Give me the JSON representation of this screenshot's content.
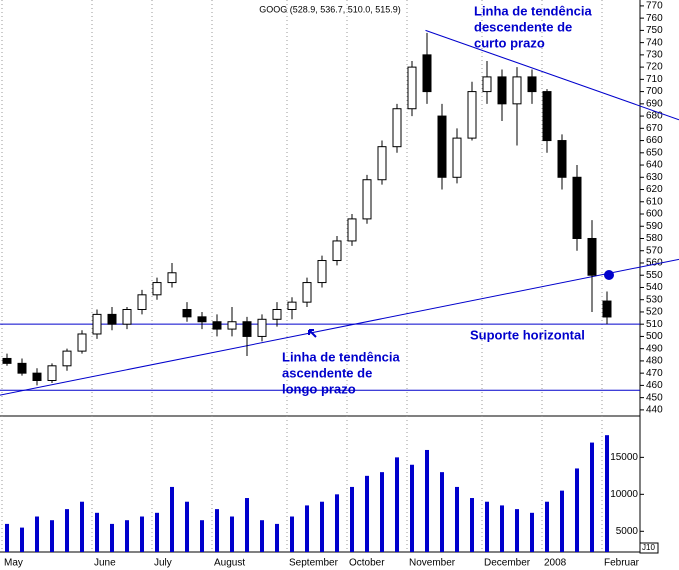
{
  "chart_data": {
    "type": "candlestick",
    "title": "GOOG (528.9, 536.7, 510.0, 515.9)",
    "categories": [
      "May",
      null,
      null,
      null,
      null,
      null,
      "June",
      null,
      null,
      null,
      "July",
      null,
      null,
      null,
      "August",
      null,
      null,
      null,
      null,
      "September",
      null,
      null,
      null,
      "October",
      null,
      null,
      null,
      "November",
      null,
      null,
      null,
      null,
      "December",
      null,
      null,
      null,
      "2008",
      null,
      null,
      null,
      "Februar"
    ],
    "open": [
      482,
      478,
      470,
      464,
      476,
      488,
      502,
      518,
      510,
      522,
      534,
      544,
      522,
      516,
      512,
      506,
      512,
      500,
      514,
      522,
      528,
      544,
      562,
      578,
      596,
      628,
      655,
      686,
      730,
      680,
      630,
      662,
      700,
      712,
      690,
      712,
      700,
      660,
      630,
      580,
      528.9
    ],
    "high": [
      486,
      482,
      474,
      478,
      490,
      505,
      522,
      524,
      524,
      538,
      548,
      560,
      528,
      520,
      518,
      524,
      516,
      518,
      528,
      532,
      548,
      566,
      582,
      600,
      632,
      660,
      690,
      725,
      748,
      690,
      670,
      708,
      725,
      718,
      720,
      718,
      702,
      665,
      640,
      595,
      536.7
    ],
    "low": [
      476,
      468,
      460,
      462,
      472,
      486,
      498,
      505,
      506,
      518,
      530,
      540,
      512,
      506,
      500,
      500,
      484,
      496,
      508,
      514,
      524,
      540,
      558,
      574,
      592,
      624,
      650,
      680,
      690,
      620,
      625,
      660,
      690,
      676,
      656,
      690,
      650,
      620,
      570,
      520,
      510.0
    ],
    "close": [
      478,
      470,
      464,
      476,
      488,
      502,
      518,
      510,
      522,
      534,
      544,
      552,
      516,
      512,
      506,
      512,
      500,
      514,
      522,
      528,
      544,
      562,
      578,
      596,
      628,
      655,
      686,
      720,
      700,
      630,
      662,
      700,
      712,
      690,
      712,
      700,
      660,
      630,
      580,
      550,
      515.9
    ],
    "volume": [
      6000,
      5500,
      7000,
      6500,
      8000,
      9000,
      7500,
      6000,
      6500,
      7000,
      7500,
      11000,
      9000,
      6500,
      8000,
      7000,
      9500,
      6500,
      6000,
      7000,
      8500,
      9000,
      10000,
      11000,
      12500,
      13000,
      15000,
      14000,
      16000,
      13000,
      11000,
      9500,
      9000,
      8500,
      8000,
      7500,
      9000,
      10500,
      13500,
      17000,
      18000
    ],
    "candle_color": "#000000",
    "volume_color": "#0000cc",
    "ylim": [
      435,
      774
    ],
    "yticks": [
      440,
      450,
      460,
      470,
      480,
      490,
      500,
      510,
      520,
      530,
      540,
      550,
      560,
      570,
      580,
      590,
      600,
      610,
      620,
      630,
      640,
      650,
      660,
      670,
      680,
      690,
      700,
      710,
      720,
      730,
      740,
      750,
      760,
      770
    ],
    "volume_ylim": [
      2200,
      18700
    ],
    "volume_yticks": [
      5000,
      10000,
      15000
    ],
    "trendlines": [
      {
        "start": [
          -0.5,
          452
        ],
        "end": [
          44.8,
          563
        ]
      },
      {
        "start": [
          27.9,
          750
        ],
        "end": [
          44.8,
          677
        ]
      }
    ],
    "hlines": [
      510,
      456
    ],
    "line_color": "#0000cc",
    "annotations": [
      [
        "Linha de tendência",
        "descendente de",
        "curto prazo"
      ],
      [
        "Suporte horizontal"
      ],
      [
        "Linha de tendência",
        "ascendente de",
        "longo prazo"
      ]
    ],
    "corner_label": "J10"
  }
}
